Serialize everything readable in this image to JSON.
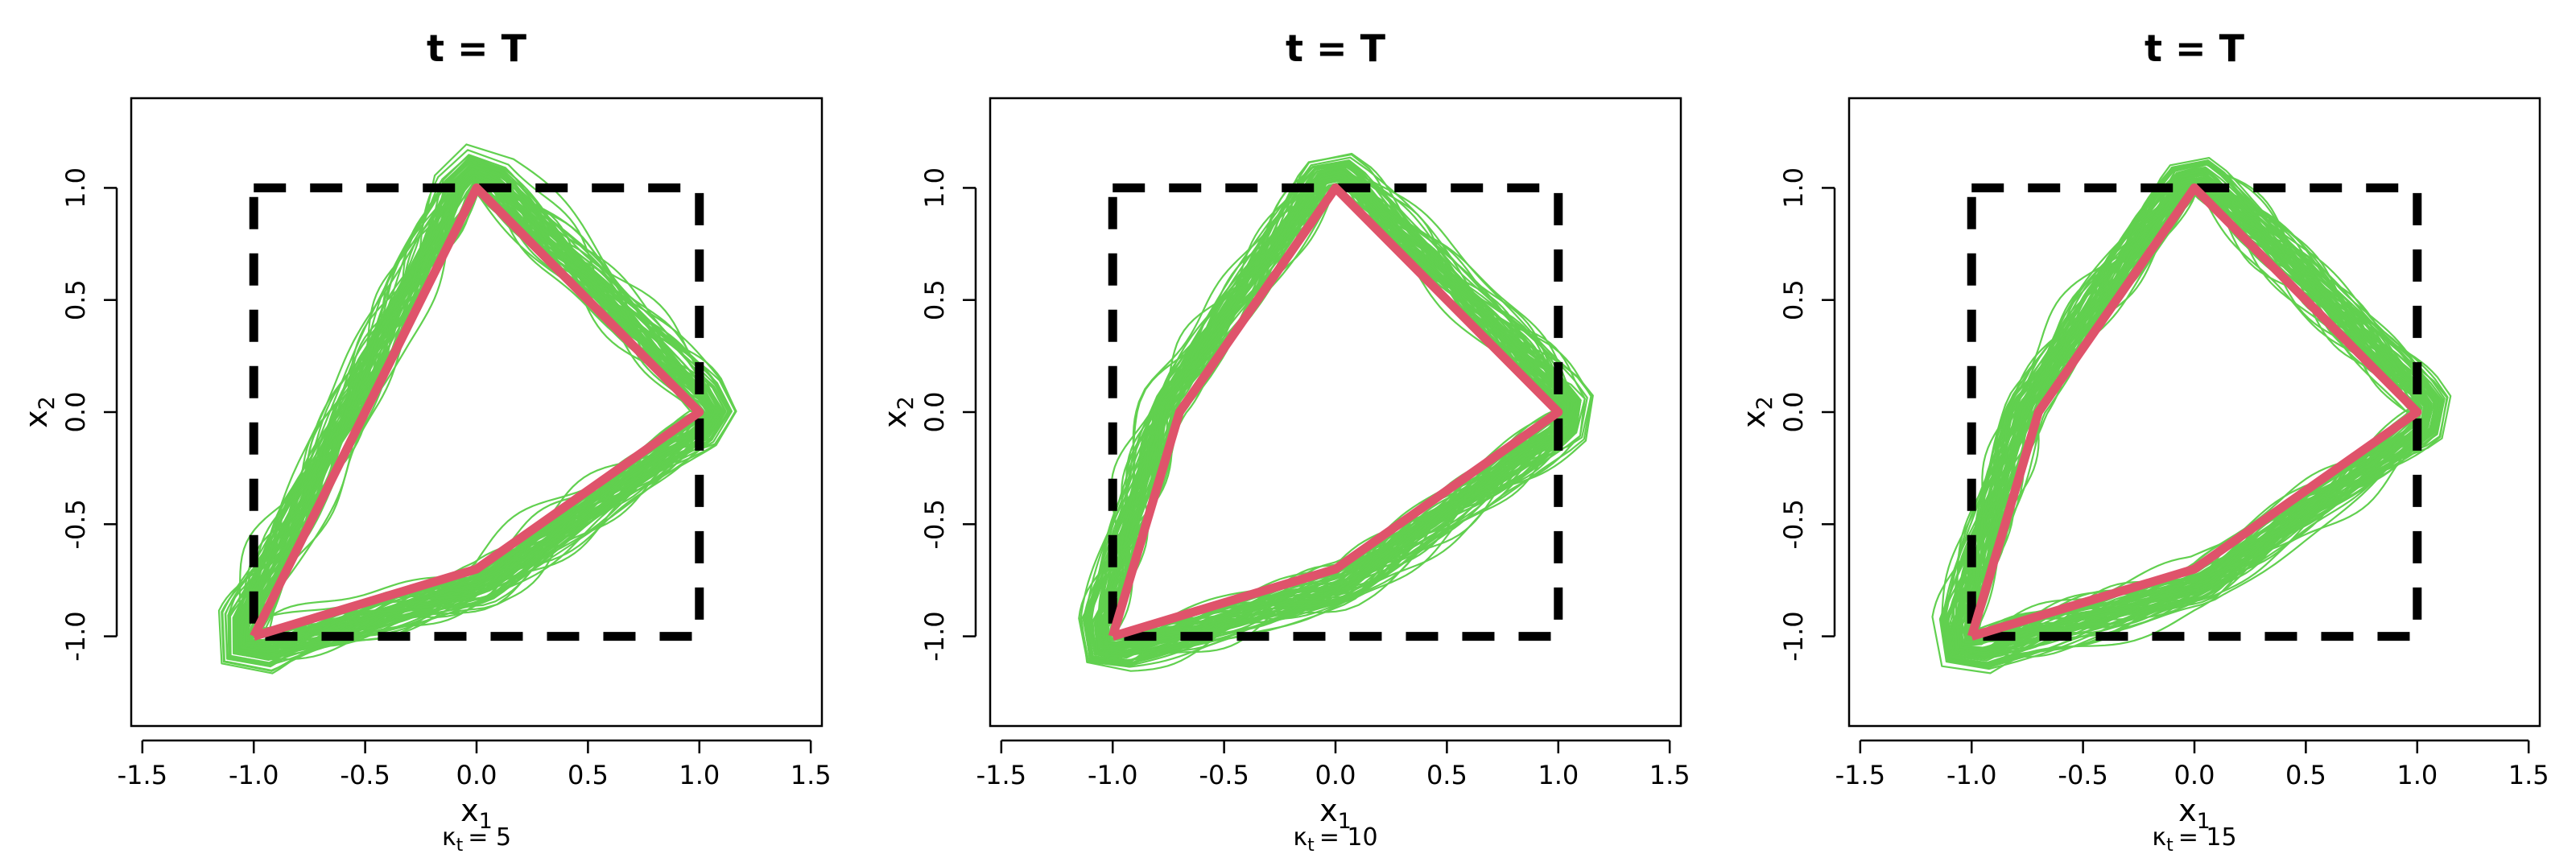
{
  "colors": {
    "envelope": "#61D04F",
    "truth": "#DF536B",
    "square": "#000000",
    "axis": "#000000"
  },
  "chart_data": [
    {
      "type": "line",
      "title": "t = T",
      "xlabel": "x",
      "xlabel_sub": "1",
      "ylabel": "x",
      "ylabel_sub": "2",
      "caption_symbol": "κ",
      "caption_sub": "t",
      "caption_value": "= 5",
      "xlim": [
        -1.55,
        1.55
      ],
      "ylim": [
        -1.4,
        1.4
      ],
      "xticks": [
        -1.5,
        -1.0,
        -0.5,
        0.0,
        0.5,
        1.0,
        1.5
      ],
      "xtick_labels": [
        "-1.5",
        "-1.0",
        "-0.5",
        "0.0",
        "0.5",
        "1.0",
        "1.5"
      ],
      "yticks": [
        -1.0,
        -0.5,
        0.0,
        0.5,
        1.0
      ],
      "ytick_labels": [
        "-1.0",
        "-0.5",
        "0.0",
        "0.5",
        "1.0"
      ],
      "series": [
        {
          "x": [
            -1.0,
            0.0,
            1.0,
            0.0,
            -1.0
          ],
          "y": [
            -1.0,
            1.0,
            0.0,
            -0.7,
            -1.0
          ]
        },
        {
          "x": [
            -1.0,
            1.0,
            1.0,
            -1.0,
            -1.0
          ],
          "y": [
            1.0,
            1.0,
            -1.0,
            -1.0,
            1.0
          ]
        }
      ]
    },
    {
      "type": "line",
      "title": "t = T",
      "xlabel": "x",
      "xlabel_sub": "1",
      "ylabel": "x",
      "ylabel_sub": "2",
      "caption_symbol": "κ",
      "caption_sub": "t",
      "caption_value": "= 10",
      "xlim": [
        -1.55,
        1.55
      ],
      "ylim": [
        -1.4,
        1.4
      ],
      "xticks": [
        -1.5,
        -1.0,
        -0.5,
        0.0,
        0.5,
        1.0,
        1.5
      ],
      "xtick_labels": [
        "-1.5",
        "-1.0",
        "-0.5",
        "0.0",
        "0.5",
        "1.0",
        "1.5"
      ],
      "yticks": [
        -1.0,
        -0.5,
        0.0,
        0.5,
        1.0
      ],
      "ytick_labels": [
        "-1.0",
        "-0.5",
        "0.0",
        "0.5",
        "1.0"
      ],
      "series": [
        {
          "x": [
            -1.0,
            -0.7,
            0.0,
            1.0,
            0.0,
            -1.0
          ],
          "y": [
            -1.0,
            0.0,
            1.0,
            0.0,
            -0.7,
            -1.0
          ]
        },
        {
          "x": [
            -1.0,
            1.0,
            1.0,
            -1.0,
            -1.0
          ],
          "y": [
            1.0,
            1.0,
            -1.0,
            -1.0,
            1.0
          ]
        }
      ]
    },
    {
      "type": "line",
      "title": "t = T",
      "xlabel": "x",
      "xlabel_sub": "1",
      "ylabel": "x",
      "ylabel_sub": "2",
      "caption_symbol": "κ",
      "caption_sub": "t",
      "caption_value": "= 15",
      "xlim": [
        -1.55,
        1.55
      ],
      "ylim": [
        -1.4,
        1.4
      ],
      "xticks": [
        -1.5,
        -1.0,
        -0.5,
        0.0,
        0.5,
        1.0,
        1.5
      ],
      "xtick_labels": [
        "-1.5",
        "-1.0",
        "-0.5",
        "0.0",
        "0.5",
        "1.0",
        "1.5"
      ],
      "yticks": [
        -1.0,
        -0.5,
        0.0,
        0.5,
        1.0
      ],
      "ytick_labels": [
        "-1.0",
        "-0.5",
        "0.0",
        "0.5",
        "1.0"
      ],
      "series": [
        {
          "x": [
            -1.0,
            -0.7,
            0.0,
            1.0,
            0.0,
            -1.0
          ],
          "y": [
            -1.0,
            0.0,
            1.0,
            0.0,
            -0.7,
            -1.0
          ]
        },
        {
          "x": [
            -1.0,
            1.0,
            1.0,
            -1.0,
            -1.0
          ],
          "y": [
            1.0,
            1.0,
            -1.0,
            -1.0,
            1.0
          ]
        }
      ]
    }
  ]
}
